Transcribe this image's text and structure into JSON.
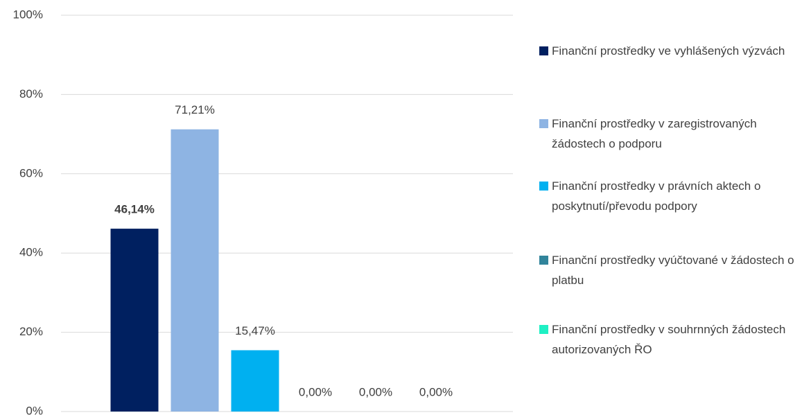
{
  "chart_data": {
    "type": "bar",
    "series": [
      {
        "name": "Finanční prostředky ve vyhlášených výzvách",
        "color": "#002060",
        "values": [
          46.14
        ],
        "value_labels": [
          "46,14%"
        ]
      },
      {
        "name": "Finanční prostředky v zaregistrovaných žádostech o podporu",
        "color": "#8eb4e3",
        "values": [
          71.21
        ],
        "value_labels": [
          "71,21%"
        ]
      },
      {
        "name": "Finanční prostředky v právních aktech o poskytnutí/převodu podpory",
        "color": "#00b0f0",
        "values": [
          15.47
        ],
        "value_labels": [
          "15,47%"
        ]
      },
      {
        "name": "Finanční prostředky vyúčtované v žádostech o platbu",
        "color": "#31849b",
        "values": [
          0
        ],
        "value_labels": [
          "0,00%"
        ]
      },
      {
        "name": "Finanční prostředky v souhrnných žádostech autorizovaných ŘO",
        "color": "#1ff0c4",
        "values": [
          0
        ],
        "value_labels": [
          "0,00%"
        ]
      },
      {
        "values": [
          0
        ],
        "value_labels": [
          "0,00%"
        ]
      }
    ],
    "ylim": [
      0,
      100
    ],
    "yticks": [
      {
        "value": 0,
        "label": "0%"
      },
      {
        "value": 20,
        "label": "20%"
      },
      {
        "value": 40,
        "label": "40%"
      },
      {
        "value": 60,
        "label": "60%"
      },
      {
        "value": 80,
        "label": "80%"
      },
      {
        "value": 100,
        "label": "100%"
      }
    ],
    "grid": true,
    "legend": "right"
  }
}
